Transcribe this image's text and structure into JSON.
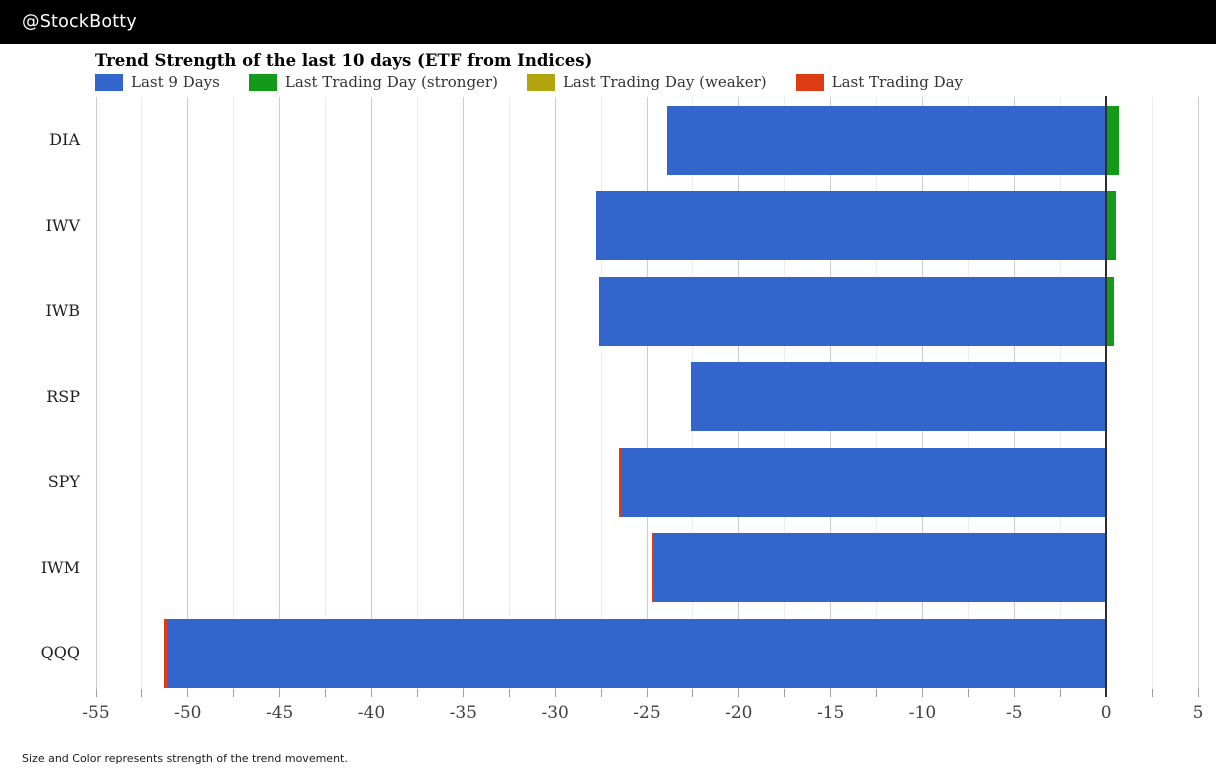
{
  "header": {
    "title": "@StockBotty"
  },
  "chart": {
    "title": "Trend Strength of the last 10 days (ETF from Indices)",
    "legend": [
      {
        "label": "Last 9 Days",
        "color": "#3366cc"
      },
      {
        "label": "Last Trading Day (stronger)",
        "color": "#149a1a"
      },
      {
        "label": "Last Trading Day (weaker)",
        "color": "#b1a40d"
      },
      {
        "label": "Last Trading Day",
        "color": "#dd3b12"
      }
    ],
    "footnote": "Size and Color represents strength of the trend movement."
  },
  "chart_data": {
    "type": "bar",
    "orientation": "horizontal",
    "stacked": true,
    "title": "Trend Strength of the last 10 days (ETF from Indices)",
    "categories": [
      "DIA",
      "IWV",
      "IWB",
      "RSP",
      "SPY",
      "IWM",
      "QQQ"
    ],
    "series": [
      {
        "name": "Last 9 Days",
        "values": [
          -23.9,
          -27.8,
          -27.6,
          -22.6,
          -26.4,
          -24.6,
          -51.1
        ]
      },
      {
        "name": "Last Trading Day (stronger)",
        "values": [
          0.7,
          0.55,
          0.45,
          0.05,
          0,
          0,
          0
        ]
      },
      {
        "name": "Last Trading Day (weaker)",
        "values": [
          0,
          0,
          0,
          0,
          0,
          0,
          0
        ]
      },
      {
        "name": "Last Trading Day",
        "values": [
          0,
          0,
          0,
          0,
          -0.1,
          -0.15,
          -0.2
        ]
      }
    ],
    "xlim": [
      -55,
      5
    ],
    "x_tick_step": 5,
    "x_minor_tick_step": 2.5,
    "grid": true,
    "legend_position": "top",
    "xlabel": "",
    "ylabel": "",
    "colors": {
      "last9": "#3366cc",
      "stronger": "#149a1a",
      "weaker": "#b1a40d",
      "last_day": "#dd3b12",
      "zero_line": "#2e2e2e",
      "grid_major": "#cccccc",
      "grid_minor": "#ececec",
      "tick": "#9e9e9e"
    }
  }
}
